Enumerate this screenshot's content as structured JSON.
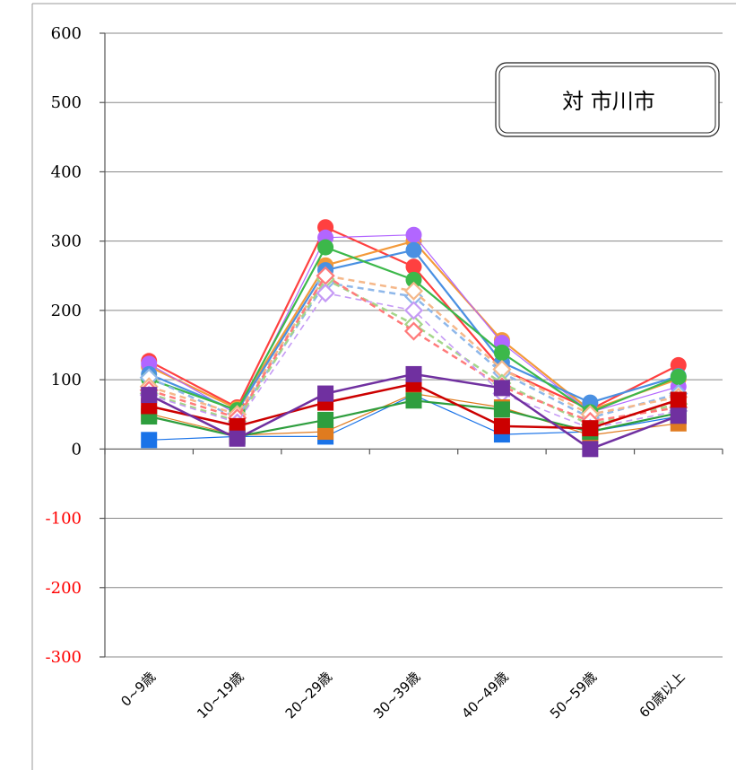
{
  "chart_data": {
    "type": "line",
    "title": "対 市川市",
    "xlabel": "",
    "ylabel": "",
    "categories": [
      "0~9歳",
      "10~19歳",
      "20~29歳",
      "30~39歳",
      "40~49歳",
      "50~59歳",
      "60歳以上"
    ],
    "ylim": [
      -300,
      600
    ],
    "y_ticks": [
      600,
      500,
      400,
      300,
      200,
      100,
      0,
      -100,
      -200,
      -300
    ],
    "negative_tick_color": "#ff0000",
    "grid": true,
    "series": [
      {
        "color": "#ff4040",
        "marker": "circle",
        "style": "solid",
        "width": 2.2,
        "values": [
          127,
          60,
          320,
          263,
          115,
          57,
          121
        ]
      },
      {
        "color": "#f39a3a",
        "marker": "circle",
        "style": "solid",
        "width": 2.2,
        "values": [
          119,
          58,
          265,
          300,
          157,
          56,
          101
        ]
      },
      {
        "color": "#b266ff",
        "marker": "circle",
        "style": "solid",
        "width": 1.2,
        "values": [
          123,
          50,
          305,
          309,
          153,
          53,
          90
        ]
      },
      {
        "color": "#4a90e2",
        "marker": "circle",
        "style": "solid",
        "width": 2.2,
        "values": [
          108,
          55,
          258,
          287,
          125,
          67,
          105
        ]
      },
      {
        "color": "#3cb84a",
        "marker": "circle",
        "style": "solid",
        "width": 2.2,
        "values": [
          101,
          56,
          291,
          244,
          139,
          53,
          104
        ]
      },
      {
        "color": "#8fb8ea",
        "marker": "diamond",
        "style": "dashed",
        "width": 2.5,
        "values": [
          103,
          45,
          240,
          220,
          110,
          45,
          80
        ]
      },
      {
        "color": "#f5b88a",
        "marker": "diamond",
        "style": "dashed",
        "width": 2.5,
        "values": [
          90,
          50,
          250,
          228,
          115,
          50,
          75
        ]
      },
      {
        "color": "#a4d68a",
        "marker": "diamond",
        "style": "dashed",
        "width": 2.5,
        "values": [
          80,
          40,
          245,
          180,
          95,
          35,
          65
        ]
      },
      {
        "color": "#ff7a7a",
        "marker": "diamond",
        "style": "dashed",
        "width": 2.5,
        "values": [
          85,
          45,
          250,
          170,
          90,
          40,
          60
        ]
      },
      {
        "color": "#c59af5",
        "marker": "diamond",
        "style": "dashed",
        "width": 1.6,
        "values": [
          78,
          38,
          225,
          200,
          80,
          30,
          55
        ]
      },
      {
        "color": "#1a73e8",
        "marker": "square",
        "style": "solid",
        "width": 1.2,
        "values": [
          13,
          18,
          18,
          78,
          21,
          25,
          47
        ]
      },
      {
        "color": "#e07b1f",
        "marker": "square",
        "style": "solid",
        "width": 1.2,
        "values": [
          51,
          20,
          25,
          80,
          60,
          20,
          37
        ]
      },
      {
        "color": "#2e9e3e",
        "marker": "square",
        "style": "solid",
        "width": 2.2,
        "values": [
          47,
          18,
          42,
          70,
          57,
          25,
          52
        ]
      },
      {
        "color": "#cc0000",
        "marker": "square",
        "style": "solid",
        "width": 2.5,
        "values": [
          62,
          33,
          67,
          94,
          33,
          30,
          71
        ]
      },
      {
        "color": "#7030a0",
        "marker": "square",
        "style": "solid",
        "width": 2.5,
        "values": [
          78,
          15,
          80,
          108,
          88,
          0,
          48
        ]
      }
    ]
  }
}
